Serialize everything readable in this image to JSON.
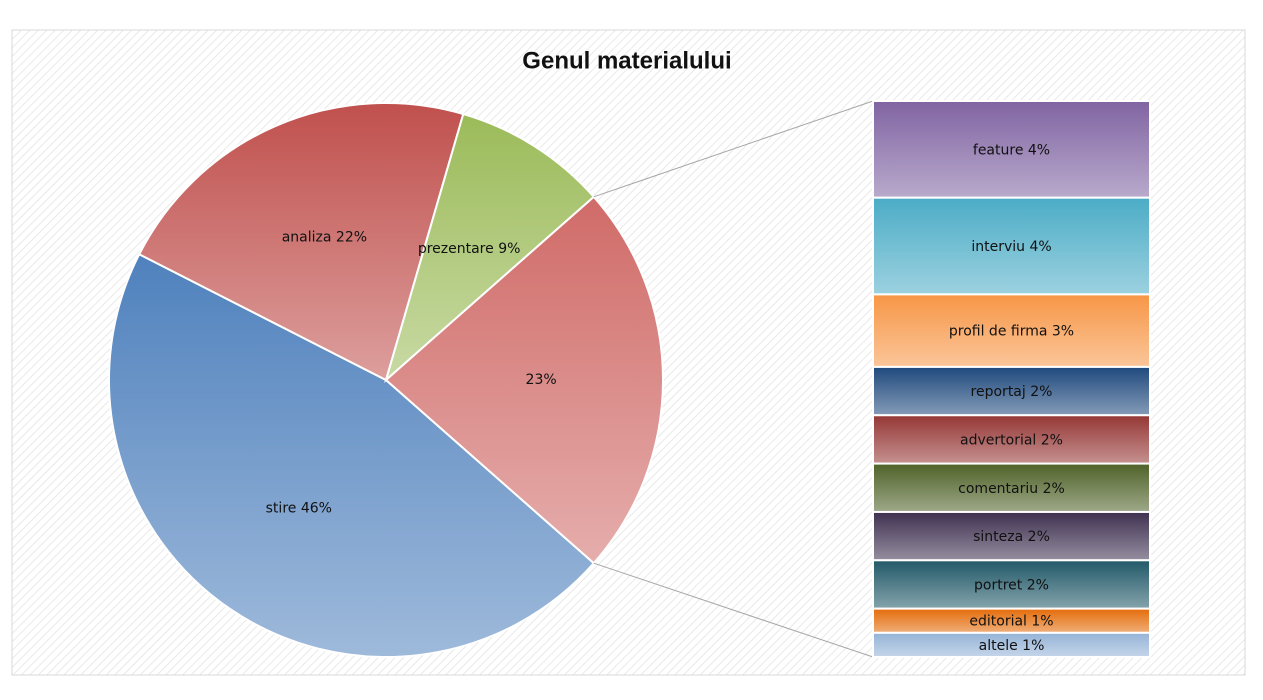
{
  "chart_data": {
    "type": "pie-of-bar",
    "title": "Genul materialului",
    "categories": [
      "stire",
      "analiza",
      "prezentare",
      null
    ],
    "values": [
      46,
      22,
      9,
      23
    ],
    "value_labels": [
      "46%",
      "22%",
      "9%",
      "23%"
    ],
    "colors": [
      "#4f81bd",
      "#c0504d",
      "#9bbb59",
      "#d06b68"
    ],
    "breakdown": {
      "categories": [
        "feature",
        "interviu",
        "profil de firma",
        "reportaj",
        "advertorial",
        "comentariu",
        "sinteza",
        "portret",
        "editorial",
        "altele"
      ],
      "values": [
        4,
        4,
        3,
        2,
        2,
        2,
        2,
        2,
        1,
        1
      ],
      "value_labels": [
        "4%",
        "4%",
        "3%",
        "2%",
        "2%",
        "2%",
        "2%",
        "2%",
        "1%",
        "1%"
      ],
      "colors": [
        "#8064a2",
        "#4bacc6",
        "#f79646",
        "#1f497d",
        "#953735",
        "#4f6228",
        "#3f3151",
        "#215968",
        "#e46c0a",
        "#95b3d7"
      ]
    }
  }
}
